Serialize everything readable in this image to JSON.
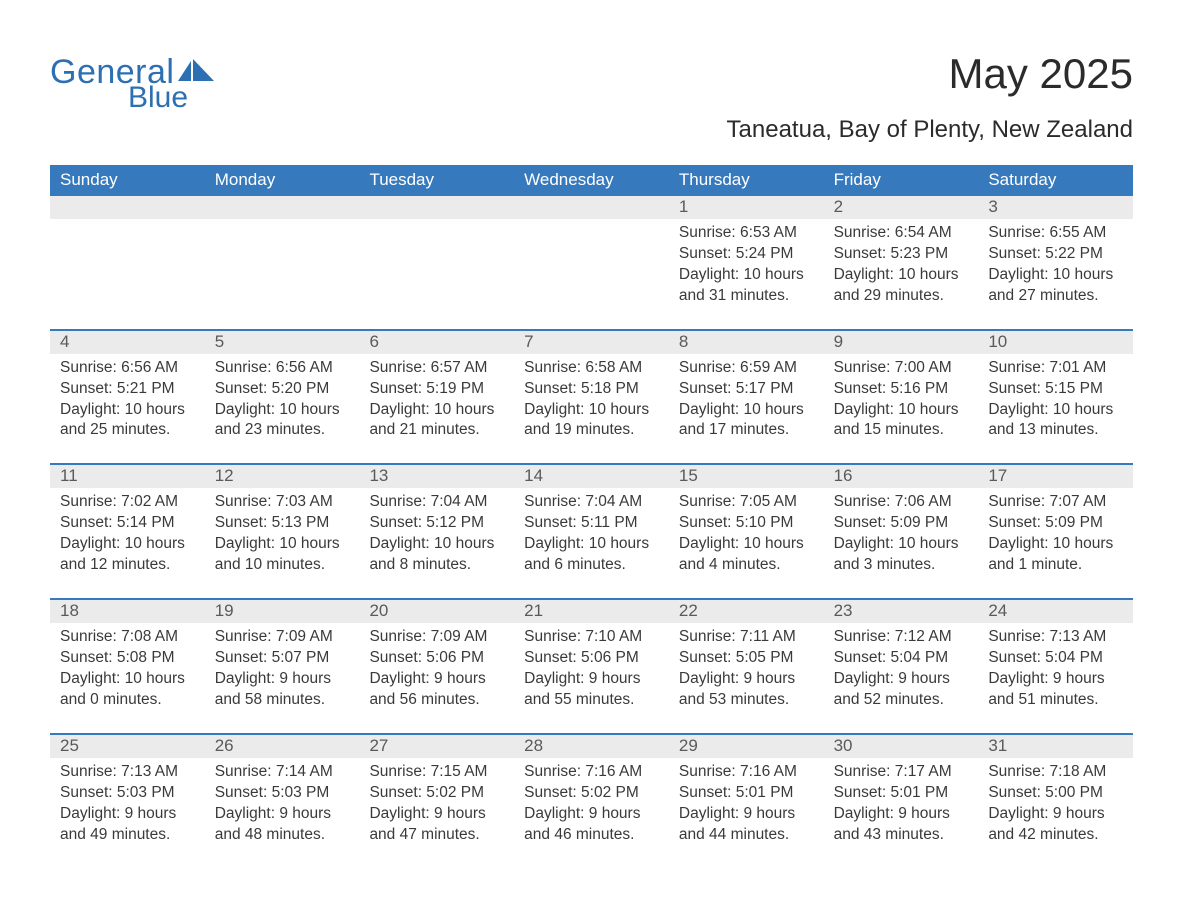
{
  "logo": {
    "general": "General",
    "blue": "Blue"
  },
  "title": {
    "month": "May 2025",
    "location": "Taneatua, Bay of Plenty, New Zealand"
  },
  "colors": {
    "header_bg": "#3679bd",
    "header_text": "#ffffff",
    "daynum_bg": "#ebebeb",
    "divider": "#3679bd",
    "body_text": "#3a3a3a",
    "logo_color": "#2d6fb3",
    "page_bg": "#ffffff"
  },
  "day_names": [
    "Sunday",
    "Monday",
    "Tuesday",
    "Wednesday",
    "Thursday",
    "Friday",
    "Saturday"
  ],
  "weeks": [
    [
      {
        "num": "",
        "sunrise": "",
        "sunset": "",
        "daylight1": "",
        "daylight2": ""
      },
      {
        "num": "",
        "sunrise": "",
        "sunset": "",
        "daylight1": "",
        "daylight2": ""
      },
      {
        "num": "",
        "sunrise": "",
        "sunset": "",
        "daylight1": "",
        "daylight2": ""
      },
      {
        "num": "",
        "sunrise": "",
        "sunset": "",
        "daylight1": "",
        "daylight2": ""
      },
      {
        "num": "1",
        "sunrise": "Sunrise: 6:53 AM",
        "sunset": "Sunset: 5:24 PM",
        "daylight1": "Daylight: 10 hours",
        "daylight2": "and 31 minutes."
      },
      {
        "num": "2",
        "sunrise": "Sunrise: 6:54 AM",
        "sunset": "Sunset: 5:23 PM",
        "daylight1": "Daylight: 10 hours",
        "daylight2": "and 29 minutes."
      },
      {
        "num": "3",
        "sunrise": "Sunrise: 6:55 AM",
        "sunset": "Sunset: 5:22 PM",
        "daylight1": "Daylight: 10 hours",
        "daylight2": "and 27 minutes."
      }
    ],
    [
      {
        "num": "4",
        "sunrise": "Sunrise: 6:56 AM",
        "sunset": "Sunset: 5:21 PM",
        "daylight1": "Daylight: 10 hours",
        "daylight2": "and 25 minutes."
      },
      {
        "num": "5",
        "sunrise": "Sunrise: 6:56 AM",
        "sunset": "Sunset: 5:20 PM",
        "daylight1": "Daylight: 10 hours",
        "daylight2": "and 23 minutes."
      },
      {
        "num": "6",
        "sunrise": "Sunrise: 6:57 AM",
        "sunset": "Sunset: 5:19 PM",
        "daylight1": "Daylight: 10 hours",
        "daylight2": "and 21 minutes."
      },
      {
        "num": "7",
        "sunrise": "Sunrise: 6:58 AM",
        "sunset": "Sunset: 5:18 PM",
        "daylight1": "Daylight: 10 hours",
        "daylight2": "and 19 minutes."
      },
      {
        "num": "8",
        "sunrise": "Sunrise: 6:59 AM",
        "sunset": "Sunset: 5:17 PM",
        "daylight1": "Daylight: 10 hours",
        "daylight2": "and 17 minutes."
      },
      {
        "num": "9",
        "sunrise": "Sunrise: 7:00 AM",
        "sunset": "Sunset: 5:16 PM",
        "daylight1": "Daylight: 10 hours",
        "daylight2": "and 15 minutes."
      },
      {
        "num": "10",
        "sunrise": "Sunrise: 7:01 AM",
        "sunset": "Sunset: 5:15 PM",
        "daylight1": "Daylight: 10 hours",
        "daylight2": "and 13 minutes."
      }
    ],
    [
      {
        "num": "11",
        "sunrise": "Sunrise: 7:02 AM",
        "sunset": "Sunset: 5:14 PM",
        "daylight1": "Daylight: 10 hours",
        "daylight2": "and 12 minutes."
      },
      {
        "num": "12",
        "sunrise": "Sunrise: 7:03 AM",
        "sunset": "Sunset: 5:13 PM",
        "daylight1": "Daylight: 10 hours",
        "daylight2": "and 10 minutes."
      },
      {
        "num": "13",
        "sunrise": "Sunrise: 7:04 AM",
        "sunset": "Sunset: 5:12 PM",
        "daylight1": "Daylight: 10 hours",
        "daylight2": "and 8 minutes."
      },
      {
        "num": "14",
        "sunrise": "Sunrise: 7:04 AM",
        "sunset": "Sunset: 5:11 PM",
        "daylight1": "Daylight: 10 hours",
        "daylight2": "and 6 minutes."
      },
      {
        "num": "15",
        "sunrise": "Sunrise: 7:05 AM",
        "sunset": "Sunset: 5:10 PM",
        "daylight1": "Daylight: 10 hours",
        "daylight2": "and 4 minutes."
      },
      {
        "num": "16",
        "sunrise": "Sunrise: 7:06 AM",
        "sunset": "Sunset: 5:09 PM",
        "daylight1": "Daylight: 10 hours",
        "daylight2": "and 3 minutes."
      },
      {
        "num": "17",
        "sunrise": "Sunrise: 7:07 AM",
        "sunset": "Sunset: 5:09 PM",
        "daylight1": "Daylight: 10 hours",
        "daylight2": "and 1 minute."
      }
    ],
    [
      {
        "num": "18",
        "sunrise": "Sunrise: 7:08 AM",
        "sunset": "Sunset: 5:08 PM",
        "daylight1": "Daylight: 10 hours",
        "daylight2": "and 0 minutes."
      },
      {
        "num": "19",
        "sunrise": "Sunrise: 7:09 AM",
        "sunset": "Sunset: 5:07 PM",
        "daylight1": "Daylight: 9 hours",
        "daylight2": "and 58 minutes."
      },
      {
        "num": "20",
        "sunrise": "Sunrise: 7:09 AM",
        "sunset": "Sunset: 5:06 PM",
        "daylight1": "Daylight: 9 hours",
        "daylight2": "and 56 minutes."
      },
      {
        "num": "21",
        "sunrise": "Sunrise: 7:10 AM",
        "sunset": "Sunset: 5:06 PM",
        "daylight1": "Daylight: 9 hours",
        "daylight2": "and 55 minutes."
      },
      {
        "num": "22",
        "sunrise": "Sunrise: 7:11 AM",
        "sunset": "Sunset: 5:05 PM",
        "daylight1": "Daylight: 9 hours",
        "daylight2": "and 53 minutes."
      },
      {
        "num": "23",
        "sunrise": "Sunrise: 7:12 AM",
        "sunset": "Sunset: 5:04 PM",
        "daylight1": "Daylight: 9 hours",
        "daylight2": "and 52 minutes."
      },
      {
        "num": "24",
        "sunrise": "Sunrise: 7:13 AM",
        "sunset": "Sunset: 5:04 PM",
        "daylight1": "Daylight: 9 hours",
        "daylight2": "and 51 minutes."
      }
    ],
    [
      {
        "num": "25",
        "sunrise": "Sunrise: 7:13 AM",
        "sunset": "Sunset: 5:03 PM",
        "daylight1": "Daylight: 9 hours",
        "daylight2": "and 49 minutes."
      },
      {
        "num": "26",
        "sunrise": "Sunrise: 7:14 AM",
        "sunset": "Sunset: 5:03 PM",
        "daylight1": "Daylight: 9 hours",
        "daylight2": "and 48 minutes."
      },
      {
        "num": "27",
        "sunrise": "Sunrise: 7:15 AM",
        "sunset": "Sunset: 5:02 PM",
        "daylight1": "Daylight: 9 hours",
        "daylight2": "and 47 minutes."
      },
      {
        "num": "28",
        "sunrise": "Sunrise: 7:16 AM",
        "sunset": "Sunset: 5:02 PM",
        "daylight1": "Daylight: 9 hours",
        "daylight2": "and 46 minutes."
      },
      {
        "num": "29",
        "sunrise": "Sunrise: 7:16 AM",
        "sunset": "Sunset: 5:01 PM",
        "daylight1": "Daylight: 9 hours",
        "daylight2": "and 44 minutes."
      },
      {
        "num": "30",
        "sunrise": "Sunrise: 7:17 AM",
        "sunset": "Sunset: 5:01 PM",
        "daylight1": "Daylight: 9 hours",
        "daylight2": "and 43 minutes."
      },
      {
        "num": "31",
        "sunrise": "Sunrise: 7:18 AM",
        "sunset": "Sunset: 5:00 PM",
        "daylight1": "Daylight: 9 hours",
        "daylight2": "and 42 minutes."
      }
    ]
  ]
}
